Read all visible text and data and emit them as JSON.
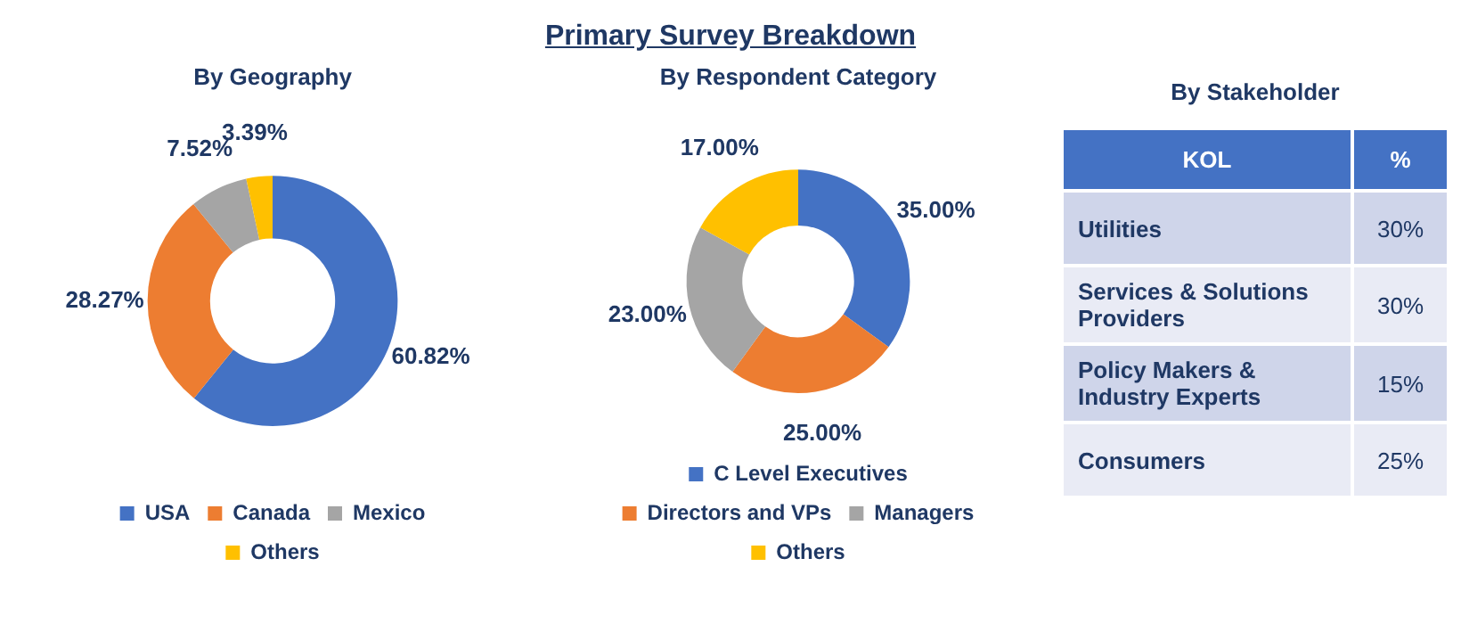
{
  "chart_data": [
    {
      "type": "other",
      "title": "Primary Survey Breakdown"
    },
    {
      "type": "donut",
      "title": "By Geography",
      "categories": [
        "USA",
        "Canada",
        "Mexico",
        "Others"
      ],
      "values": [
        60.82,
        28.27,
        7.52,
        3.39
      ],
      "colors": [
        "#4472c4",
        "#ed7d31",
        "#a5a5a5",
        "#ffc000"
      ],
      "value_labels": [
        "60.82%",
        "28.27%",
        "7.52%",
        "3.39%"
      ],
      "legend": "bottom"
    },
    {
      "type": "donut",
      "title": "By Respondent Category",
      "categories": [
        "C Level Executives",
        "Directors and VPs",
        "Managers",
        "Others"
      ],
      "values": [
        35,
        25,
        23,
        17
      ],
      "colors": [
        "#4472c4",
        "#ed7d31",
        "#a5a5a5",
        "#ffc000"
      ],
      "value_labels": [
        "35.00%",
        "25.00%",
        "23.00%",
        "17.00%"
      ],
      "legend": "bottom"
    },
    {
      "type": "other",
      "title": "By Stakeholder",
      "annotations": [
        "KOL",
        "%"
      ],
      "categories": [
        "Utilities",
        "Services & Solutions Providers",
        "Policy Makers & Industry Experts",
        "Consumers"
      ],
      "values": [
        30,
        30,
        15,
        25
      ],
      "value_labels": [
        "30%",
        "30%",
        "15%",
        "25%"
      ]
    }
  ]
}
